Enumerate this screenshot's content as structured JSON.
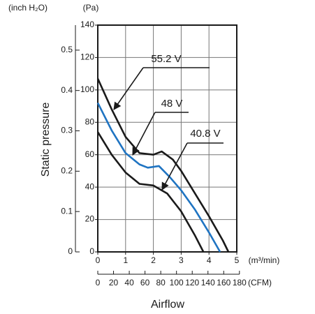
{
  "chart_data": {
    "type": "line",
    "y_label": "Static pressure",
    "x_label": "Airflow",
    "y_unit": "(Pa)",
    "y2_unit": "(inch H₂O)",
    "x_unit": "(m³/min)",
    "x2_unit": "(CFM)",
    "xlim": [
      0,
      5
    ],
    "xticks": [
      0,
      1,
      2,
      3,
      4,
      5
    ],
    "ylim": [
      0,
      140
    ],
    "yticks": [
      0,
      20,
      40,
      60,
      80,
      100,
      120,
      140
    ],
    "y2lim": [
      0,
      0.562
    ],
    "y2ticks": [
      0,
      0.1,
      0.2,
      0.3,
      0.4,
      0.5
    ],
    "x2lim": [
      0,
      176.6
    ],
    "x2ticks": [
      0,
      20,
      40,
      60,
      80,
      100,
      120,
      140,
      160,
      180
    ],
    "grid": true,
    "series": [
      {
        "name": "55.2 V",
        "color": "#1a1a1a",
        "x": [
          0,
          0.5,
          1.0,
          1.5,
          2.0,
          2.3,
          2.7,
          3.0,
          3.5,
          4.0,
          4.5,
          4.7
        ],
        "values": [
          107,
          88,
          71,
          61,
          60,
          62,
          57,
          50,
          36,
          22,
          7,
          0
        ]
      },
      {
        "name": "48 V",
        "color": "#1f74c2",
        "x": [
          0,
          0.5,
          1.0,
          1.5,
          1.8,
          2.2,
          2.6,
          3.0,
          3.5,
          4.0,
          4.4
        ],
        "values": [
          92,
          75,
          61,
          54,
          52,
          53,
          46,
          38,
          26,
          12,
          0
        ]
      },
      {
        "name": "40.8 V",
        "color": "#1a1a1a",
        "x": [
          0,
          0.5,
          1.0,
          1.5,
          2.0,
          2.5,
          3.0,
          3.5,
          3.8
        ],
        "values": [
          74,
          60,
          49,
          42,
          41,
          36,
          25,
          10,
          0
        ]
      }
    ]
  }
}
